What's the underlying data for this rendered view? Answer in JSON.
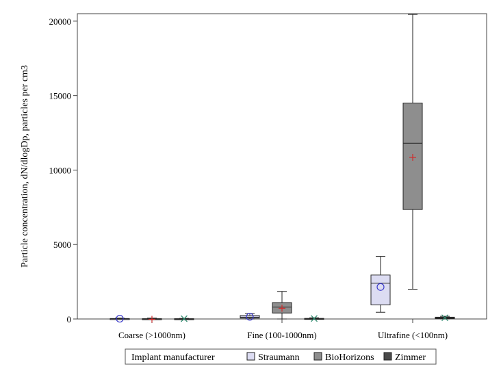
{
  "chart_data": {
    "type": "box",
    "ylabel": "Particle concentration, dN/dlogDp, particles per cm3",
    "xlabel": "",
    "ylim": [
      0,
      20500
    ],
    "y_ticks": [
      0,
      5000,
      10000,
      15000,
      20000
    ],
    "y_tick_labels": [
      "0",
      "5000",
      "10000",
      "15000",
      "20000"
    ],
    "categories": [
      "Coarse (>1000nm)",
      "Fine (100-1000nm)",
      "Ultrafine (<100nm)"
    ],
    "legend": {
      "title": "Implant manufacturer",
      "placement": "bottom"
    },
    "series": [
      {
        "name": "Straumann",
        "color": "#dcdcf2",
        "mean_marker": "circle",
        "mean_color": "#3b3bcc",
        "boxes": [
          {
            "min": 0,
            "q1": 0,
            "median": 10,
            "q3": 30,
            "max": 60,
            "mean": 20
          },
          {
            "min": 0,
            "q1": 60,
            "median": 120,
            "q3": 230,
            "max": 370,
            "mean": 150
          },
          {
            "min": 450,
            "q1": 950,
            "median": 2400,
            "q3": 2950,
            "max": 4200,
            "mean": 2150
          }
        ]
      },
      {
        "name": "BioHorizons",
        "color": "#8e8e8e",
        "mean_marker": "plus",
        "mean_color": "#d22c2c",
        "boxes": [
          {
            "min": 0,
            "q1": 0,
            "median": 5,
            "q3": 20,
            "max": 60,
            "mean": -20
          },
          {
            "min": 0,
            "q1": 400,
            "median": 800,
            "q3": 1100,
            "max": 1850,
            "mean": 720
          },
          {
            "min": 2000,
            "q1": 7350,
            "median": 11800,
            "q3": 14500,
            "max": 20450,
            "mean": 10850
          }
        ]
      },
      {
        "name": "Zimmer",
        "color": "#4a4a4a",
        "mean_marker": "x",
        "mean_color": "#2e8b6e",
        "boxes": [
          {
            "min": 0,
            "q1": 0,
            "median": 5,
            "q3": 20,
            "max": 40,
            "mean": 20
          },
          {
            "min": 0,
            "q1": 0,
            "median": 10,
            "q3": 40,
            "max": 80,
            "mean": 30
          },
          {
            "min": 0,
            "q1": 30,
            "median": 60,
            "q3": 120,
            "max": 180,
            "mean": 80
          }
        ]
      }
    ]
  }
}
